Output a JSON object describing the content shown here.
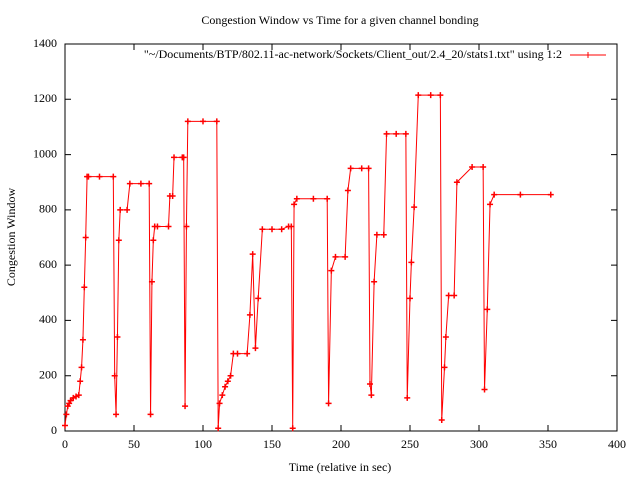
{
  "chart_data": {
    "type": "line",
    "title": "Congestion Window vs Time for a given channel bonding",
    "x_label": "Time (relative in sec)",
    "y_label": "Congestion Window",
    "x": [
      0,
      1,
      2,
      3,
      4,
      6,
      8,
      10,
      11,
      12,
      13,
      14,
      15,
      16,
      17,
      25,
      35,
      36,
      37,
      38,
      39,
      40,
      45,
      47,
      55,
      61,
      62,
      63,
      64,
      65,
      67,
      75,
      76,
      78,
      79,
      85,
      86,
      87,
      88,
      89,
      100,
      110,
      111,
      112,
      114,
      116,
      118,
      120,
      122,
      125,
      132,
      134,
      136,
      138,
      140,
      143,
      150,
      157,
      162,
      164,
      165,
      166,
      168,
      180,
      190,
      191,
      193,
      196,
      203,
      205,
      207,
      215,
      220,
      221,
      222,
      224,
      226,
      231,
      233,
      240,
      247,
      248,
      250,
      251,
      253,
      256,
      265,
      272,
      273,
      275,
      276,
      278,
      282,
      284,
      295,
      303,
      304,
      306,
      308,
      311,
      330,
      352
    ],
    "series": [
      {
        "name": "\"~/Documents/BTP/802.11-ac-network/Sockets/Client_out/2.4_20/stats1.txt\" using 1:2",
        "color": "#ff0000",
        "values": [
          20,
          60,
          90,
          100,
          110,
          120,
          125,
          130,
          180,
          230,
          330,
          520,
          700,
          920,
          920,
          920,
          920,
          200,
          60,
          340,
          690,
          800,
          800,
          895,
          895,
          895,
          60,
          540,
          690,
          740,
          740,
          740,
          850,
          850,
          990,
          990,
          990,
          90,
          740,
          1120,
          1120,
          1120,
          10,
          100,
          130,
          160,
          180,
          200,
          280,
          280,
          280,
          420,
          640,
          300,
          480,
          730,
          730,
          730,
          740,
          740,
          10,
          820,
          840,
          840,
          840,
          100,
          580,
          630,
          630,
          870,
          950,
          950,
          950,
          170,
          130,
          540,
          710,
          710,
          1075,
          1075,
          1075,
          120,
          480,
          610,
          810,
          1215,
          1215,
          1215,
          40,
          230,
          340,
          490,
          490,
          900,
          955,
          955,
          150,
          440,
          820,
          855,
          855,
          855
        ]
      }
    ],
    "xlim": [
      0,
      400
    ],
    "xticks": [
      0,
      50,
      100,
      150,
      200,
      250,
      300,
      350,
      400
    ],
    "ylim": [
      0,
      1400
    ],
    "yticks": [
      0,
      200,
      400,
      600,
      800,
      1000,
      1200,
      1400
    ],
    "legend": "top-right"
  }
}
